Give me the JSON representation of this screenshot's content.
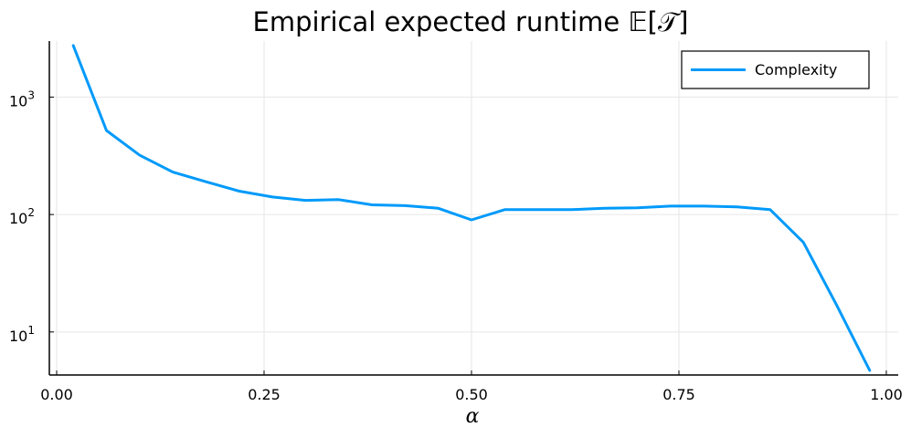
{
  "chart_data": {
    "type": "line",
    "title": "Empirical expected runtime 𝔼[𝒯]",
    "xlabel": "α",
    "ylabel": "",
    "xlim": [
      0.0,
      1.0
    ],
    "ylim": [
      4.3,
      3000
    ],
    "yscale": "log",
    "grid": true,
    "legend_position": "top-right",
    "x_ticks": [
      {
        "value": 0.0,
        "label": "0.00"
      },
      {
        "value": 0.25,
        "label": "0.25"
      },
      {
        "value": 0.5,
        "label": "0.50"
      },
      {
        "value": 0.75,
        "label": "0.75"
      },
      {
        "value": 1.0,
        "label": "1.00"
      }
    ],
    "y_ticks": [
      {
        "value": 10,
        "base": "10",
        "exp": "1"
      },
      {
        "value": 100,
        "base": "10",
        "exp": "2"
      },
      {
        "value": 1000,
        "base": "10",
        "exp": "3"
      }
    ],
    "series": [
      {
        "name": "Complexity",
        "color": "#009AFA",
        "x": [
          0.02,
          0.06,
          0.1,
          0.14,
          0.18,
          0.22,
          0.26,
          0.3,
          0.34,
          0.38,
          0.42,
          0.46,
          0.5,
          0.54,
          0.58,
          0.62,
          0.66,
          0.7,
          0.74,
          0.78,
          0.82,
          0.86,
          0.9,
          0.94,
          0.98
        ],
        "y": [
          2750,
          520,
          320,
          230,
          190,
          158,
          141,
          132,
          134,
          121,
          119,
          113,
          90,
          110,
          110,
          110,
          113,
          114,
          118,
          118,
          116,
          110,
          58,
          17,
          4.7
        ]
      }
    ]
  }
}
